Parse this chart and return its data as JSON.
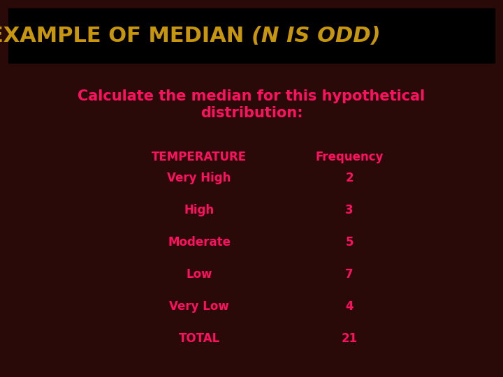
{
  "title_part1": "EXAMPLE OF MEDIAN ",
  "title_part2": "(N IS ODD)",
  "subtitle": "Calculate the median for this hypothetical\ndistribution:",
  "col1_header": "TEMPERATURE",
  "col2_header": "Frequency",
  "rows": [
    [
      "Very High",
      "2"
    ],
    [
      "High",
      "3"
    ],
    [
      "Moderate",
      "5"
    ],
    [
      "Low",
      "7"
    ],
    [
      "Very Low",
      "4"
    ],
    [
      "TOTAL",
      "21"
    ]
  ],
  "background_color": "#2a0a08",
  "title_bg_color": "#000000",
  "title_color": "#c8960c",
  "subtitle_color": "#ff1060",
  "table_color": "#ff1060",
  "fig_width": 7.2,
  "fig_height": 5.4,
  "dpi": 100
}
